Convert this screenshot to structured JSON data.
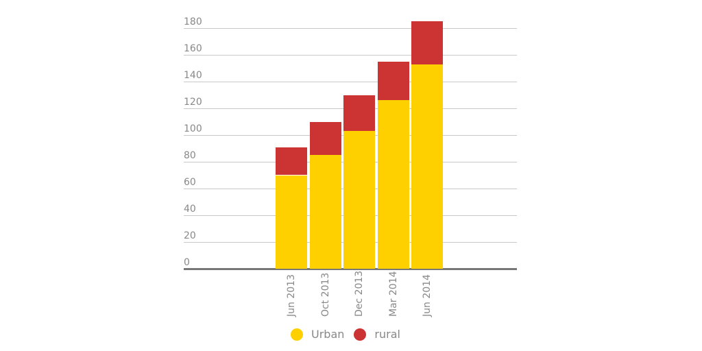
{
  "chart_data": {
    "type": "bar",
    "stacked": true,
    "title": "",
    "xlabel": "",
    "ylabel": "",
    "ylim": [
      0,
      180
    ],
    "yticks": [
      "0",
      "20",
      "40",
      "60",
      "80",
      "100",
      "120",
      "140",
      "160",
      "180"
    ],
    "grid": true,
    "legend_position": "bottom",
    "categories": [
      "Jun 2013",
      "Oct 2013",
      "Dec 2013",
      "Mar 2014",
      "Jun 2014"
    ],
    "series": [
      {
        "name": "Urban",
        "color": "#ffd000",
        "values": [
          70,
          85,
          103,
          126,
          153
        ]
      },
      {
        "name": "rural",
        "color": "#cc3333",
        "values": [
          21,
          25,
          27,
          29,
          32
        ]
      }
    ]
  },
  "legend": {
    "items": [
      {
        "label": "Urban",
        "color": "#ffd000"
      },
      {
        "label": "rural",
        "color": "#cc3333"
      }
    ]
  }
}
